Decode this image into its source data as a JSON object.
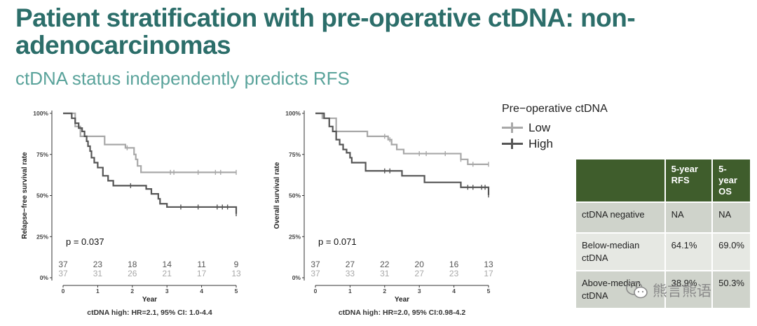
{
  "slide": {
    "title": "Patient stratification with pre-operative ctDNA: non-adenocarcinomas",
    "subtitle": "ctDNA status independently predicts RFS"
  },
  "legend": {
    "title": "Pre−operative ctDNA",
    "items": [
      {
        "label": "Low",
        "color": "#a8a8a8"
      },
      {
        "label": "High",
        "color": "#555555"
      }
    ]
  },
  "chart_data": [
    {
      "type": "line",
      "ylabel": "Relapse−free survival rate",
      "xlabel": "Year",
      "xlim": [
        0,
        5
      ],
      "ylim": [
        0,
        100
      ],
      "xticks": [
        "0",
        "1",
        "2",
        "3",
        "4",
        "5"
      ],
      "yticks": [
        "0%",
        "25%",
        "50%",
        "75%",
        "100%"
      ],
      "pvalue": "p = 0.037",
      "footnote": "ctDNA high: HR=2.1, 95% CI: 1.0-4.4",
      "risk_times": [
        0,
        1,
        2,
        3,
        4,
        5
      ],
      "series": [
        {
          "name": "Low",
          "color": "#a8a8a8",
          "x": [
            0,
            0.25,
            0.35,
            0.5,
            1.2,
            1.8,
            2.05,
            2.1,
            2.15,
            2.25,
            5
          ],
          "y": [
            100,
            100,
            92,
            86,
            81,
            79,
            75,
            72,
            68,
            64.1,
            64.1
          ],
          "censor_x": [
            1.85,
            3.1,
            3.2,
            3.9,
            4.4,
            4.55,
            5.0
          ],
          "at_risk": [
            "37",
            "31",
            "26",
            "21",
            "17",
            "13"
          ]
        },
        {
          "name": "High",
          "color": "#555555",
          "x": [
            0,
            0.25,
            0.35,
            0.45,
            0.55,
            0.62,
            0.68,
            0.72,
            0.78,
            0.82,
            0.9,
            1.0,
            1.15,
            1.3,
            1.45,
            2.4,
            2.55,
            2.75,
            2.8,
            3.0,
            5
          ],
          "y": [
            100,
            97,
            94,
            91,
            89,
            86,
            83,
            80,
            77,
            73,
            70,
            67,
            62,
            59,
            56,
            54,
            51,
            48,
            45,
            43,
            38.9
          ],
          "censor_x": [
            1.95,
            3.4,
            3.9,
            4.45,
            4.6,
            4.75,
            5.0
          ],
          "at_risk": [
            "37",
            "23",
            "18",
            "14",
            "11",
            "9"
          ]
        }
      ]
    },
    {
      "type": "line",
      "ylabel": "Overall survival rate",
      "xlabel": "Year",
      "xlim": [
        0,
        5
      ],
      "ylim": [
        0,
        100
      ],
      "xticks": [
        "0",
        "1",
        "2",
        "3",
        "4",
        "5"
      ],
      "yticks": [
        "0%",
        "25%",
        "50%",
        "75%",
        "100%"
      ],
      "pvalue": "p = 0.071",
      "footnote": "ctDNA high: HR=2.0, 95% CI:0.98-4.2",
      "risk_times": [
        0,
        1,
        2,
        3,
        4,
        5
      ],
      "series": [
        {
          "name": "Low",
          "color": "#a8a8a8",
          "x": [
            0,
            0.2,
            0.6,
            1.5,
            2.1,
            2.2,
            2.35,
            2.55,
            4.0,
            4.2,
            4.4,
            5
          ],
          "y": [
            100,
            97,
            89,
            86,
            84,
            81,
            78,
            75.5,
            75.5,
            72,
            69,
            69
          ],
          "censor_x": [
            2.0,
            2.15,
            3.0,
            3.2,
            3.75,
            4.2,
            4.55,
            5.0
          ],
          "at_risk": [
            "37",
            "33",
            "31",
            "27",
            "23",
            "17"
          ]
        },
        {
          "name": "High",
          "color": "#555555",
          "x": [
            0,
            0.25,
            0.4,
            0.5,
            0.6,
            0.7,
            0.8,
            0.9,
            1.0,
            1.05,
            1.45,
            2.5,
            3.15,
            4.2,
            5
          ],
          "y": [
            100,
            97,
            92,
            89,
            84,
            81,
            78,
            76,
            73,
            70,
            65,
            62,
            58,
            55,
            50.3
          ],
          "censor_x": [
            2.0,
            2.15,
            4.4,
            4.55,
            4.8,
            4.9,
            5.0
          ],
          "at_risk": [
            "37",
            "27",
            "22",
            "20",
            "16",
            "13"
          ]
        }
      ]
    }
  ],
  "summary_table": {
    "headers": [
      "",
      "5-year RFS",
      "5-year OS"
    ],
    "rows": [
      [
        "ctDNA negative",
        "NA",
        "NA"
      ],
      [
        "Below-median ctDNA",
        "64.1%",
        "69.0%"
      ],
      [
        "Above-median ctDNA",
        "38.9%",
        "50.3%"
      ]
    ]
  },
  "watermark": {
    "text": "熊言熊语"
  }
}
